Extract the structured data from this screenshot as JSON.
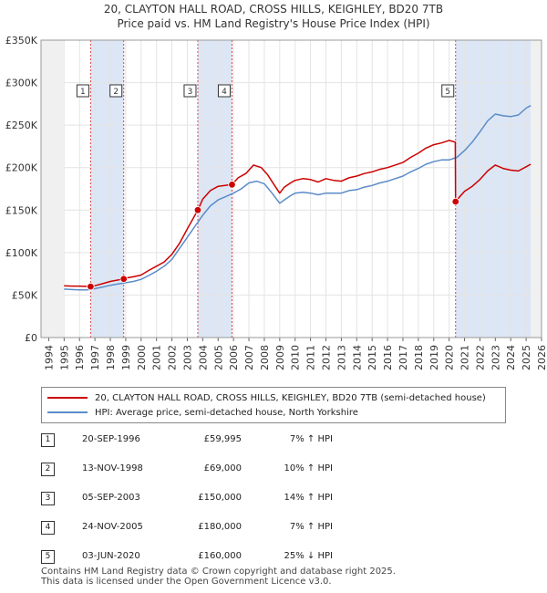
{
  "title_line1": "20, CLAYTON HALL ROAD, CROSS HILLS, KEIGHLEY, BD20 7TB",
  "title_line2": "Price paid vs. HM Land Registry's House Price Index (HPI)",
  "colors": {
    "property": "#cc0000",
    "hpi": "#5b8cc8",
    "shade": "#dce6f5",
    "marker_line": "#dd4444"
  },
  "chart_data": {
    "type": "line",
    "title": "20, CLAYTON HALL ROAD, CROSS HILLS, KEIGHLEY, BD20 7TB — Price paid vs. HM Land Registry's House Price Index (HPI)",
    "xlabel": "",
    "ylabel": "",
    "xlim": [
      1993.5,
      2026.0
    ],
    "ylim": [
      0,
      350000
    ],
    "x_ticks": [
      1994,
      1995,
      1996,
      1997,
      1998,
      1999,
      2000,
      2001,
      2002,
      2003,
      2004,
      2005,
      2006,
      2007,
      2008,
      2009,
      2010,
      2011,
      2012,
      2013,
      2014,
      2015,
      2016,
      2017,
      2018,
      2019,
      2020,
      2021,
      2022,
      2023,
      2024,
      2025,
      2026
    ],
    "y_ticks": [
      {
        "value": 0,
        "label": "£0"
      },
      {
        "value": 50000,
        "label": "£50K"
      },
      {
        "value": 100000,
        "label": "£100K"
      },
      {
        "value": 150000,
        "label": "£150K"
      },
      {
        "value": 200000,
        "label": "£200K"
      },
      {
        "value": 250000,
        "label": "£250K"
      },
      {
        "value": 300000,
        "label": "£300K"
      },
      {
        "value": 350000,
        "label": "£350K"
      }
    ],
    "data_range": [
      1995.0,
      2025.3
    ],
    "shaded_periods": [
      [
        1996.72,
        1998.87
      ],
      [
        2003.68,
        2005.9
      ],
      [
        2020.42,
        2025.3
      ]
    ],
    "series": [
      {
        "name": "20, CLAYTON HALL ROAD, CROSS HILLS, KEIGHLEY, BD20 7TB (semi-detached house)",
        "color": "#cc0000",
        "x": [
          1995.0,
          1995.5,
          1996.0,
          1996.72,
          1997.0,
          1997.5,
          1998.0,
          1998.87,
          1999.0,
          1999.5,
          2000.0,
          2000.5,
          2001.0,
          2001.5,
          2002.0,
          2002.5,
          2003.0,
          2003.68,
          2004.0,
          2004.5,
          2005.0,
          2005.9,
          2006.3,
          2006.8,
          2007.3,
          2007.8,
          2008.2,
          2008.7,
          2009.0,
          2009.3,
          2009.7,
          2010.0,
          2010.5,
          2011.0,
          2011.5,
          2012.0,
          2012.5,
          2013.0,
          2013.5,
          2014.0,
          2014.5,
          2015.0,
          2015.5,
          2016.0,
          2016.5,
          2017.0,
          2017.5,
          2018.0,
          2018.5,
          2019.0,
          2019.5,
          2020.0,
          2020.4,
          2020.42,
          2020.7,
          2021.0,
          2021.5,
          2022.0,
          2022.5,
          2023.0,
          2023.5,
          2024.0,
          2024.5,
          2025.0,
          2025.3
        ],
        "values": [
          61000,
          60500,
          60500,
          59995,
          61000,
          63500,
          66000,
          69000,
          70000,
          71500,
          73500,
          79000,
          84000,
          89000,
          98000,
          111000,
          128000,
          150000,
          163000,
          173000,
          178000,
          180000,
          188000,
          193000,
          203000,
          200000,
          192000,
          178000,
          170000,
          177000,
          182000,
          185000,
          187000,
          186000,
          183000,
          187000,
          185000,
          184000,
          188000,
          190000,
          193000,
          195000,
          198000,
          200000,
          203000,
          206000,
          212000,
          217000,
          223000,
          227000,
          229000,
          232000,
          230000,
          160000,
          166000,
          172000,
          178000,
          186000,
          196000,
          203000,
          199000,
          197000,
          196000,
          201000,
          204000
        ]
      },
      {
        "name": "HPI: Average price, semi-detached house, North Yorkshire",
        "color": "#5b8cc8",
        "x": [
          1995.0,
          1995.5,
          1996.0,
          1996.5,
          1997.0,
          1997.5,
          1998.0,
          1998.5,
          1999.0,
          1999.5,
          2000.0,
          2000.5,
          2001.0,
          2001.5,
          2002.0,
          2002.5,
          2003.0,
          2003.5,
          2004.0,
          2004.5,
          2005.0,
          2005.5,
          2006.0,
          2006.5,
          2007.0,
          2007.5,
          2008.0,
          2008.5,
          2009.0,
          2009.3,
          2009.7,
          2010.0,
          2010.5,
          2011.0,
          2011.5,
          2012.0,
          2012.5,
          2013.0,
          2013.5,
          2014.0,
          2014.5,
          2015.0,
          2015.5,
          2016.0,
          2016.5,
          2017.0,
          2017.5,
          2018.0,
          2018.5,
          2019.0,
          2019.5,
          2020.0,
          2020.5,
          2021.0,
          2021.5,
          2022.0,
          2022.5,
          2023.0,
          2023.5,
          2024.0,
          2024.5,
          2025.0,
          2025.3
        ],
        "values": [
          57000,
          56500,
          56000,
          56000,
          57500,
          59500,
          61500,
          63000,
          64500,
          66000,
          68500,
          73000,
          78000,
          84000,
          92000,
          105000,
          118000,
          131000,
          144000,
          155000,
          162000,
          166000,
          170000,
          175000,
          182000,
          184000,
          181000,
          170000,
          158000,
          162000,
          167000,
          170000,
          171000,
          170000,
          168000,
          170000,
          170000,
          170000,
          173000,
          174000,
          177000,
          179000,
          182000,
          184000,
          187000,
          190000,
          195000,
          199000,
          204000,
          207000,
          209000,
          209000,
          212000,
          220000,
          230000,
          242000,
          255000,
          263000,
          261000,
          260000,
          262000,
          270000,
          273000
        ]
      }
    ],
    "transactions": [
      {
        "num": "1",
        "x": 1996.72,
        "price": 59995
      },
      {
        "num": "2",
        "x": 1998.87,
        "price": 69000
      },
      {
        "num": "3",
        "x": 2003.68,
        "price": 150000
      },
      {
        "num": "4",
        "x": 2005.9,
        "price": 180000
      },
      {
        "num": "5",
        "x": 2020.42,
        "price": 160000
      }
    ]
  },
  "legend": {
    "property": "20, CLAYTON HALL ROAD, CROSS HILLS, KEIGHLEY, BD20 7TB (semi-detached house)",
    "hpi": "HPI: Average price, semi-detached house, North Yorkshire"
  },
  "table": [
    {
      "num": "1",
      "date": "20-SEP-1996",
      "price": "£59,995",
      "hpi": "7% ↑ HPI"
    },
    {
      "num": "2",
      "date": "13-NOV-1998",
      "price": "£69,000",
      "hpi": "10% ↑ HPI"
    },
    {
      "num": "3",
      "date": "05-SEP-2003",
      "price": "£150,000",
      "hpi": "14% ↑ HPI"
    },
    {
      "num": "4",
      "date": "24-NOV-2005",
      "price": "£180,000",
      "hpi": "7% ↑ HPI"
    },
    {
      "num": "5",
      "date": "03-JUN-2020",
      "price": "£160,000",
      "hpi": "25% ↓ HPI"
    }
  ],
  "footer_line1": "Contains HM Land Registry data © Crown copyright and database right 2025.",
  "footer_line2": "This data is licensed under the Open Government Licence v3.0."
}
